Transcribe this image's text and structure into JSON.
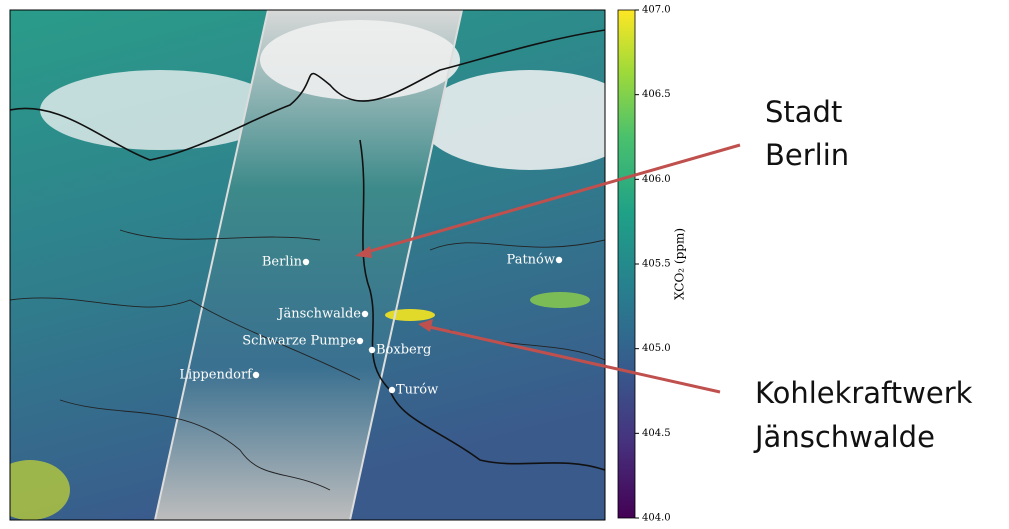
{
  "map": {
    "cities": [
      {
        "name": "Berlin"
      },
      {
        "name": "Jänschwalde"
      },
      {
        "name": "Schwarze Pumpe"
      },
      {
        "name": "Boxberg"
      },
      {
        "name": "Lippendorf"
      },
      {
        "name": "Turów"
      },
      {
        "name": "Patnów"
      }
    ]
  },
  "colorbar": {
    "label": "XCO₂ (ppm)",
    "lim": [
      404,
      407
    ],
    "ticks": [
      {
        "value": 404,
        "label": "404.0"
      },
      {
        "value": 404.5,
        "label": "404.5"
      },
      {
        "value": 405,
        "label": "405.0"
      },
      {
        "value": 405.5,
        "label": "405.5"
      },
      {
        "value": 406,
        "label": "406.0"
      },
      {
        "value": 406.5,
        "label": "406.5"
      },
      {
        "value": 407,
        "label": "407.0"
      }
    ]
  },
  "annotations": [
    {
      "lines": [
        "Stadt",
        "Berlin"
      ]
    },
    {
      "lines": [
        "Kohlekraftwerk",
        "Jänschwalde"
      ]
    }
  ]
}
